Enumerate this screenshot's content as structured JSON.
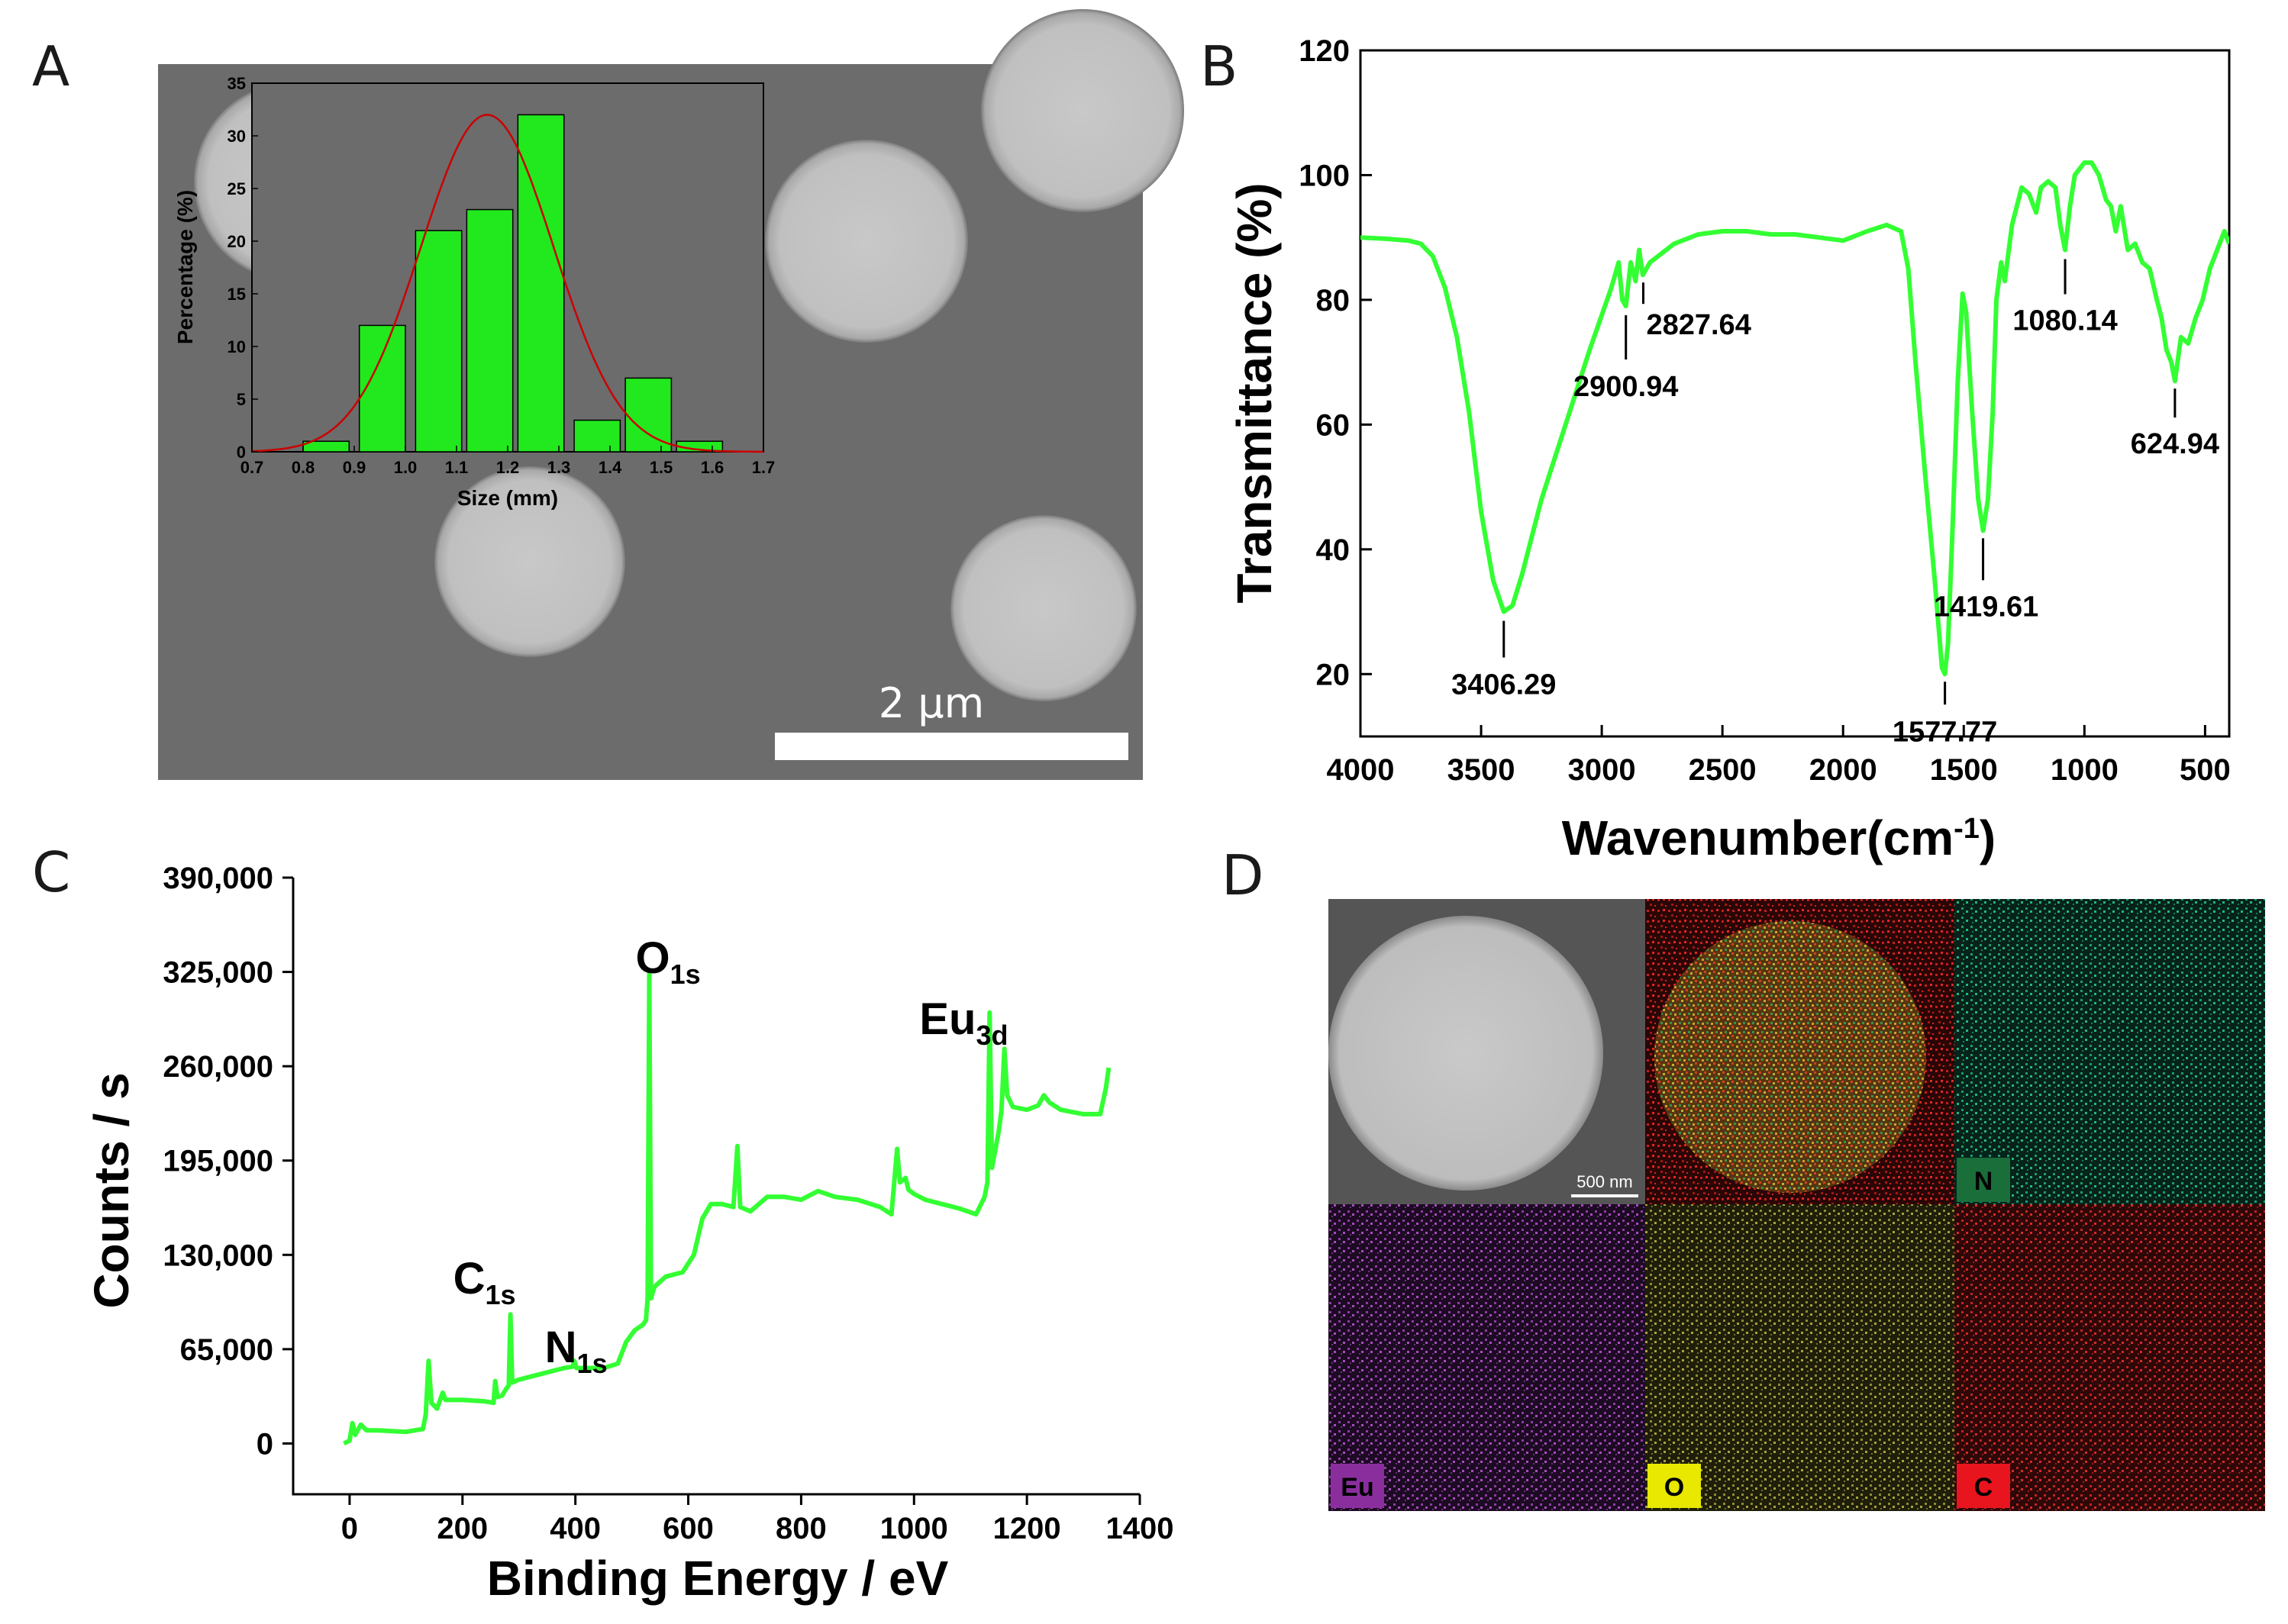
{
  "panels": {
    "a": "A",
    "b": "B",
    "c": "C",
    "d": "D"
  },
  "colors": {
    "curve": "#33ff33",
    "bar": "#22e81e",
    "fit": "#cc0000",
    "sem_bg": "#6c6c6c"
  },
  "chart_data": [
    {
      "id": "inset-histogram",
      "type": "bar",
      "xlabel": "Size (mm)",
      "ylabel": "Percentage (%)",
      "x_ticks": [
        "0.7",
        "0.8",
        "0.9",
        "1.0",
        "1.1",
        "1.2",
        "1.3",
        "1.4",
        "1.5",
        "1.6",
        "1.7"
      ],
      "y_ticks": [
        "0",
        "5",
        "10",
        "15",
        "20",
        "25",
        "30",
        "35"
      ],
      "xlim": [
        0.7,
        1.7
      ],
      "ylim": [
        0,
        35
      ],
      "bins": [
        {
          "from": 0.8,
          "to": 0.89,
          "value": 1
        },
        {
          "from": 0.91,
          "to": 1.0,
          "value": 12
        },
        {
          "from": 1.02,
          "to": 1.11,
          "value": 21
        },
        {
          "from": 1.12,
          "to": 1.21,
          "value": 23
        },
        {
          "from": 1.22,
          "to": 1.31,
          "value": 32
        },
        {
          "from": 1.33,
          "to": 1.42,
          "value": 3
        },
        {
          "from": 1.43,
          "to": 1.52,
          "value": 7
        },
        {
          "from": 1.53,
          "to": 1.62,
          "value": 1
        }
      ],
      "fit": {
        "type": "gaussian",
        "mean": 1.16,
        "sigma": 0.13,
        "peak": 32
      }
    },
    {
      "id": "ftir",
      "type": "line",
      "xlabel": "Wavenumber",
      "xlabel_unit": "(cm",
      "xlabel_sup": "-1",
      "xlabel_close": ")",
      "ylabel": "Transmittance (%)",
      "xlim": [
        4000,
        400
      ],
      "ylim": [
        10,
        120
      ],
      "x_ticks": [
        "4000",
        "3500",
        "3000",
        "2500",
        "2000",
        "1500",
        "1000",
        "500"
      ],
      "y_ticks": [
        "20",
        "40",
        "60",
        "80",
        "100",
        "120"
      ],
      "points": [
        [
          4000,
          90
        ],
        [
          3900,
          89.8
        ],
        [
          3800,
          89.5
        ],
        [
          3750,
          89
        ],
        [
          3700,
          87
        ],
        [
          3650,
          82
        ],
        [
          3600,
          74
        ],
        [
          3550,
          62
        ],
        [
          3500,
          46
        ],
        [
          3450,
          35
        ],
        [
          3406,
          30
        ],
        [
          3370,
          31
        ],
        [
          3330,
          36
        ],
        [
          3250,
          48
        ],
        [
          3150,
          60
        ],
        [
          3050,
          72
        ],
        [
          2960,
          82
        ],
        [
          2930,
          86
        ],
        [
          2915,
          80
        ],
        [
          2900,
          79
        ],
        [
          2880,
          86
        ],
        [
          2860,
          83
        ],
        [
          2845,
          88
        ],
        [
          2830,
          84
        ],
        [
          2800,
          86
        ],
        [
          2700,
          89
        ],
        [
          2600,
          90.5
        ],
        [
          2500,
          91
        ],
        [
          2400,
          91
        ],
        [
          2300,
          90.5
        ],
        [
          2200,
          90.5
        ],
        [
          2100,
          90
        ],
        [
          2000,
          89.5
        ],
        [
          1900,
          91
        ],
        [
          1820,
          92
        ],
        [
          1760,
          91
        ],
        [
          1730,
          85
        ],
        [
          1700,
          70
        ],
        [
          1660,
          52
        ],
        [
          1620,
          35
        ],
        [
          1590,
          21
        ],
        [
          1578,
          20
        ],
        [
          1565,
          25
        ],
        [
          1545,
          45
        ],
        [
          1525,
          67
        ],
        [
          1505,
          81
        ],
        [
          1490,
          78
        ],
        [
          1465,
          62
        ],
        [
          1440,
          48
        ],
        [
          1420,
          43
        ],
        [
          1400,
          48
        ],
        [
          1380,
          62
        ],
        [
          1365,
          80
        ],
        [
          1345,
          86
        ],
        [
          1330,
          83
        ],
        [
          1300,
          92
        ],
        [
          1260,
          98
        ],
        [
          1230,
          97
        ],
        [
          1200,
          94
        ],
        [
          1180,
          98
        ],
        [
          1150,
          99
        ],
        [
          1120,
          98
        ],
        [
          1100,
          92
        ],
        [
          1080,
          88
        ],
        [
          1060,
          95
        ],
        [
          1040,
          100
        ],
        [
          1000,
          102
        ],
        [
          970,
          102
        ],
        [
          940,
          100
        ],
        [
          910,
          96
        ],
        [
          890,
          95
        ],
        [
          870,
          91
        ],
        [
          850,
          95
        ],
        [
          820,
          88
        ],
        [
          790,
          89
        ],
        [
          760,
          86
        ],
        [
          730,
          85
        ],
        [
          700,
          80
        ],
        [
          680,
          77
        ],
        [
          660,
          72
        ],
        [
          640,
          70
        ],
        [
          625,
          67
        ],
        [
          600,
          74
        ],
        [
          570,
          73
        ],
        [
          540,
          77
        ],
        [
          510,
          80
        ],
        [
          480,
          85
        ],
        [
          450,
          88
        ],
        [
          420,
          91
        ],
        [
          400,
          89
        ]
      ],
      "annotations": [
        {
          "label": "3406.29",
          "x": 3406,
          "y": 30
        },
        {
          "label": "2900.94",
          "x": 2900,
          "y": 79
        },
        {
          "label": "2827.64",
          "x": 2828,
          "y": 84
        },
        {
          "label": "1577.77",
          "x": 1578,
          "y": 20
        },
        {
          "label": "1419.61",
          "x": 1420,
          "y": 43
        },
        {
          "label": "1080.14",
          "x": 1080,
          "y": 88
        },
        {
          "label": "624.94",
          "x": 625,
          "y": 67
        }
      ]
    },
    {
      "id": "xps",
      "type": "line",
      "xlabel": "Binding Energy / eV",
      "ylabel": "Counts / s",
      "xlim": [
        -100,
        1400
      ],
      "ylim": [
        -35000,
        390000
      ],
      "x_ticks": [
        "0",
        "200",
        "400",
        "600",
        "800",
        "1000",
        "1200",
        "1400"
      ],
      "y_ticks": [
        "0",
        "65,000",
        "130,000",
        "195,000",
        "260,000",
        "325,000",
        "390,000"
      ],
      "points": [
        [
          -10,
          0
        ],
        [
          0,
          2000
        ],
        [
          5,
          14000
        ],
        [
          10,
          6000
        ],
        [
          20,
          13000
        ],
        [
          30,
          9000
        ],
        [
          50,
          9000
        ],
        [
          100,
          8000
        ],
        [
          130,
          10000
        ],
        [
          135,
          20000
        ],
        [
          140,
          57000
        ],
        [
          145,
          28000
        ],
        [
          155,
          24000
        ],
        [
          165,
          35000
        ],
        [
          170,
          30000
        ],
        [
          200,
          30000
        ],
        [
          240,
          29000
        ],
        [
          255,
          28000
        ],
        [
          258,
          43000
        ],
        [
          262,
          32000
        ],
        [
          270,
          33000
        ],
        [
          278,
          38000
        ],
        [
          282,
          40000
        ],
        [
          285,
          89000
        ],
        [
          288,
          42000
        ],
        [
          300,
          44000
        ],
        [
          340,
          48000
        ],
        [
          360,
          50000
        ],
        [
          380,
          52000
        ],
        [
          395,
          53000
        ],
        [
          398,
          57000
        ],
        [
          402,
          52000
        ],
        [
          420,
          52000
        ],
        [
          450,
          52000
        ],
        [
          475,
          55000
        ],
        [
          490,
          70000
        ],
        [
          505,
          78000
        ],
        [
          520,
          82000
        ],
        [
          525,
          85000
        ],
        [
          528,
          100000
        ],
        [
          531,
          325000
        ],
        [
          534,
          100000
        ],
        [
          540,
          108000
        ],
        [
          560,
          115000
        ],
        [
          590,
          118000
        ],
        [
          610,
          130000
        ],
        [
          625,
          155000
        ],
        [
          640,
          165000
        ],
        [
          660,
          165000
        ],
        [
          680,
          163000
        ],
        [
          687,
          205000
        ],
        [
          692,
          163000
        ],
        [
          710,
          160000
        ],
        [
          740,
          170000
        ],
        [
          770,
          170000
        ],
        [
          800,
          168000
        ],
        [
          830,
          174000
        ],
        [
          860,
          170000
        ],
        [
          900,
          168000
        ],
        [
          940,
          163000
        ],
        [
          960,
          158000
        ],
        [
          970,
          203000
        ],
        [
          975,
          180000
        ],
        [
          985,
          183000
        ],
        [
          990,
          175000
        ],
        [
          1000,
          172000
        ],
        [
          1020,
          168000
        ],
        [
          1050,
          165000
        ],
        [
          1080,
          162000
        ],
        [
          1110,
          158000
        ],
        [
          1125,
          170000
        ],
        [
          1130,
          180000
        ],
        [
          1134,
          297000
        ],
        [
          1138,
          190000
        ],
        [
          1150,
          215000
        ],
        [
          1155,
          230000
        ],
        [
          1160,
          272000
        ],
        [
          1165,
          240000
        ],
        [
          1175,
          232000
        ],
        [
          1200,
          230000
        ],
        [
          1220,
          233000
        ],
        [
          1230,
          240000
        ],
        [
          1240,
          235000
        ],
        [
          1260,
          230000
        ],
        [
          1300,
          227000
        ],
        [
          1330,
          227000
        ],
        [
          1340,
          245000
        ],
        [
          1345,
          259000
        ]
      ],
      "peaks": [
        {
          "label": "C",
          "sub": "1s",
          "x": 285
        },
        {
          "label": "N",
          "sub": "1s",
          "x": 400
        },
        {
          "label": "O",
          "sub": "1s",
          "x": 531
        },
        {
          "label": "Eu",
          "sub": "3d",
          "x": 1134
        }
      ]
    }
  ],
  "panel_a": {
    "scalebar": "2 µm"
  },
  "panel_d": {
    "scalebar": "500 nm",
    "tags": [
      "N",
      "Eu",
      "O",
      "C"
    ]
  }
}
